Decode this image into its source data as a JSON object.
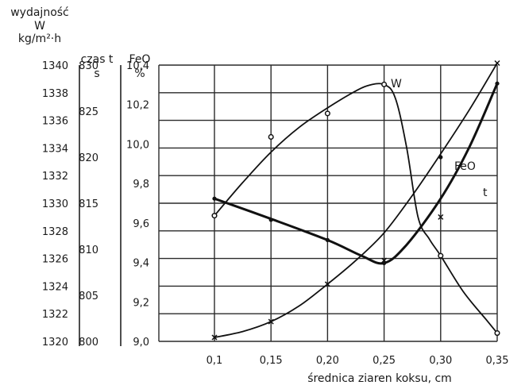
{
  "chart_data": {
    "type": "line",
    "xlabel": "średnica ziaren koksu, cm",
    "x": [
      0.1,
      0.15,
      0.2,
      0.25,
      0.3,
      0.35
    ],
    "x_tick_labels": [
      "0,1",
      "0,15",
      "0,20",
      "0,25",
      "0,30",
      "0,35"
    ],
    "xlim": [
      0.1,
      0.35
    ],
    "grid": true,
    "axes": {
      "W": {
        "label_lines": [
          "wydajność",
          "W",
          "kg/m²·h"
        ],
        "ylim": [
          1320,
          1340
        ],
        "ticks": [
          1320,
          1322,
          1324,
          1326,
          1328,
          1330,
          1332,
          1334,
          1336,
          1338,
          1340
        ],
        "tick_labels": [
          "1320",
          "1322",
          "1324",
          "1326",
          "1328",
          "1330",
          "1332",
          "1334",
          "1336",
          "1338",
          "1340"
        ]
      },
      "t": {
        "label_lines": [
          "czas t",
          "s"
        ],
        "ylim": [
          800,
          830
        ],
        "ticks": [
          800,
          805,
          810,
          815,
          820,
          825,
          830
        ],
        "tick_labels": [
          "800",
          "805",
          "810",
          "815",
          "820",
          "825",
          "830"
        ]
      },
      "FeO": {
        "label_lines": [
          "FeO",
          "%"
        ],
        "ylim": [
          9.0,
          10.4
        ],
        "ticks": [
          9.0,
          9.2,
          9.4,
          9.6,
          9.8,
          10.0,
          10.2,
          10.4
        ],
        "tick_labels": [
          "9,0",
          "9,2",
          "9,4",
          "9,6",
          "9,8",
          "10,0",
          "10,2",
          "10,4"
        ]
      }
    },
    "series": [
      {
        "name": "W",
        "axis": "W",
        "points": [
          [
            0.1,
            1329.1
          ],
          [
            0.15,
            1334.8
          ],
          [
            0.2,
            1336.5
          ],
          [
            0.25,
            1338.6
          ],
          [
            0.3,
            1326.2
          ],
          [
            0.35,
            1320.6
          ]
        ],
        "curve": [
          [
            0.1,
            1329.1
          ],
          [
            0.125,
            1331.5
          ],
          [
            0.15,
            1333.7
          ],
          [
            0.175,
            1335.5
          ],
          [
            0.2,
            1336.9
          ],
          [
            0.22,
            1337.9
          ],
          [
            0.235,
            1338.5
          ],
          [
            0.25,
            1338.6
          ],
          [
            0.26,
            1337.6
          ],
          [
            0.27,
            1334.0
          ],
          [
            0.28,
            1329.0
          ],
          [
            0.29,
            1327.4
          ],
          [
            0.3,
            1326.2
          ],
          [
            0.32,
            1323.6
          ],
          [
            0.34,
            1321.6
          ],
          [
            0.35,
            1320.6
          ]
        ]
      },
      {
        "name": "FeO",
        "axis": "FeO",
        "points": [
          [
            0.1,
            9.02
          ],
          [
            0.15,
            9.1
          ],
          [
            0.2,
            9.29
          ],
          [
            0.25,
            9.41
          ],
          [
            0.3,
            9.63
          ],
          [
            0.35,
            10.41
          ]
        ],
        "curve": [
          [
            0.1,
            9.02
          ],
          [
            0.125,
            9.05
          ],
          [
            0.15,
            9.1
          ],
          [
            0.175,
            9.18
          ],
          [
            0.2,
            9.29
          ],
          [
            0.225,
            9.41
          ],
          [
            0.25,
            9.55
          ],
          [
            0.275,
            9.74
          ],
          [
            0.3,
            9.95
          ],
          [
            0.325,
            10.17
          ],
          [
            0.35,
            10.41
          ]
        ]
      },
      {
        "name": "t",
        "axis": "t",
        "points": [
          [
            0.1,
            815.5
          ],
          [
            0.15,
            813.2
          ],
          [
            0.2,
            811.0
          ],
          [
            0.25,
            808.5
          ],
          [
            0.3,
            820.0
          ],
          [
            0.35,
            828.0
          ]
        ],
        "curve": [
          [
            0.1,
            815.5
          ],
          [
            0.15,
            813.3
          ],
          [
            0.2,
            811.0
          ],
          [
            0.23,
            809.3
          ],
          [
            0.25,
            808.5
          ],
          [
            0.27,
            810.5
          ],
          [
            0.3,
            815.5
          ],
          [
            0.325,
            821.0
          ],
          [
            0.35,
            828.0
          ]
        ]
      }
    ]
  }
}
